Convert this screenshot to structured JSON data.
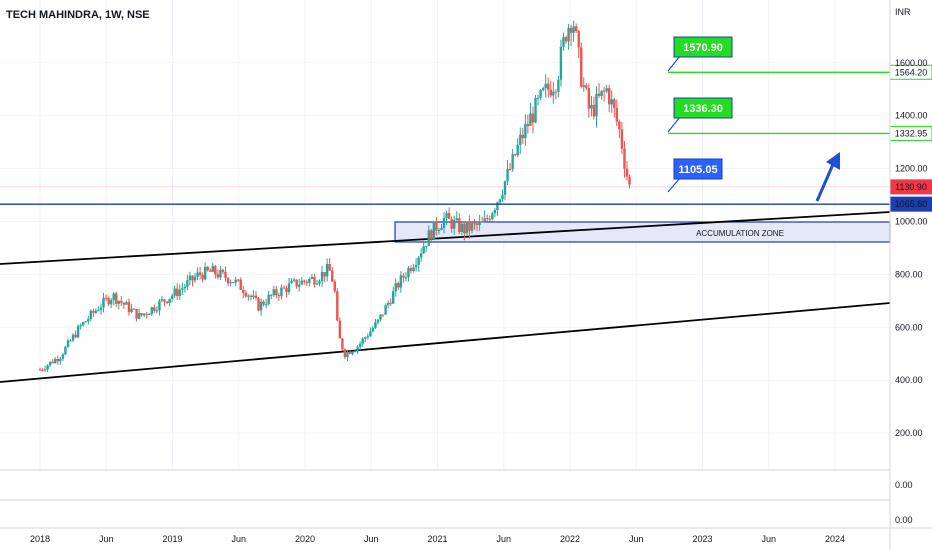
{
  "header": {
    "title": "TECH MAHINDRA, 1W, NSE",
    "currency": "INR"
  },
  "colors": {
    "bullish": "#26a69a",
    "bearish": "#ef5350",
    "green_line": "#22dd22",
    "blue_line": "#1a3fb0",
    "callout_blue": "#2962ff",
    "price_red": "#f23645"
  },
  "chart_data": {
    "type": "candlestick",
    "title": "TECH MAHINDRA, 1W, NSE",
    "ylabel": "INR",
    "ylim": [
      0,
      1800
    ],
    "y_ticks": [
      "1600.00",
      "1400.00",
      "1200.00",
      "1000.00",
      "800.00",
      "600.00",
      "400.00",
      "200.00"
    ],
    "x_ticks": [
      "2018",
      "Jun",
      "2019",
      "Jun",
      "2020",
      "Jun",
      "2021",
      "Jun",
      "2022",
      "Jun",
      "2023",
      "Jun",
      "2024"
    ],
    "price_path": [
      [
        2018.0,
        440
      ],
      [
        2018.15,
        490
      ],
      [
        2018.3,
        600
      ],
      [
        2018.45,
        680
      ],
      [
        2018.55,
        720
      ],
      [
        2018.75,
        640
      ],
      [
        2018.9,
        690
      ],
      [
        2019.05,
        740
      ],
      [
        2019.2,
        800
      ],
      [
        2019.3,
        810
      ],
      [
        2019.45,
        780
      ],
      [
        2019.55,
        740
      ],
      [
        2019.65,
        680
      ],
      [
        2019.75,
        720
      ],
      [
        2019.9,
        760
      ],
      [
        2020.1,
        790
      ],
      [
        2020.18,
        820
      ],
      [
        2020.22,
        760
      ],
      [
        2020.25,
        570
      ],
      [
        2020.3,
        500
      ],
      [
        2020.4,
        530
      ],
      [
        2020.55,
        620
      ],
      [
        2020.7,
        760
      ],
      [
        2020.85,
        870
      ],
      [
        2020.95,
        960
      ],
      [
        2021.05,
        1010
      ],
      [
        2021.2,
        970
      ],
      [
        2021.35,
        990
      ],
      [
        2021.45,
        1080
      ],
      [
        2021.55,
        1200
      ],
      [
        2021.62,
        1300
      ],
      [
        2021.7,
        1390
      ],
      [
        2021.8,
        1480
      ],
      [
        2021.9,
        1540
      ],
      [
        2021.97,
        1720
      ],
      [
        2022.02,
        1780
      ],
      [
        2022.08,
        1560
      ],
      [
        2022.15,
        1410
      ],
      [
        2022.22,
        1460
      ],
      [
        2022.28,
        1500
      ],
      [
        2022.33,
        1420
      ],
      [
        2022.38,
        1330
      ],
      [
        2022.42,
        1200
      ],
      [
        2022.45,
        1130
      ]
    ],
    "levels": [
      {
        "label": "1564.20",
        "value": 1564.2,
        "color": "#22dd22"
      },
      {
        "label": "1332.95",
        "value": 1332.95,
        "color": "#22dd22"
      },
      {
        "label": "1130.90",
        "value": 1130.9,
        "color": "#f23645"
      },
      {
        "label": "1065.60",
        "value": 1065.6,
        "color": "#1a3fb0"
      }
    ],
    "callouts": [
      "1570.90",
      "1336.30",
      "1105.05"
    ],
    "zone": {
      "label": "ACCUMULATION ZONE",
      "from": 915,
      "to": 985
    },
    "lower_pane_ticks": [
      "0.00",
      "0.00"
    ]
  }
}
